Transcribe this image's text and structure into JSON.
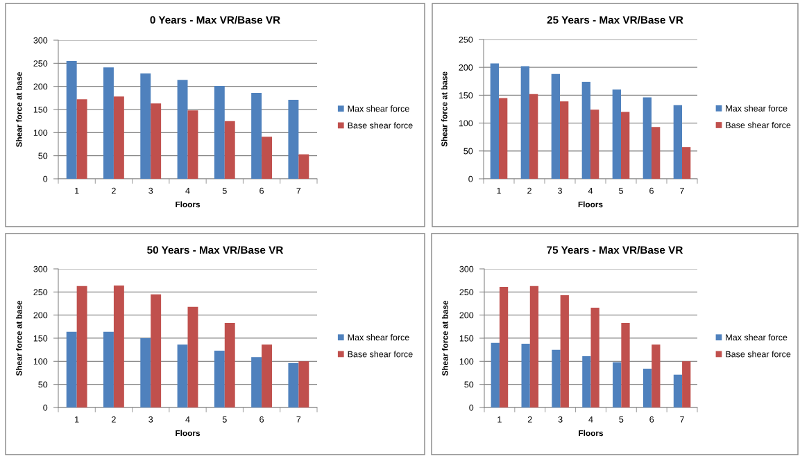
{
  "chart_data": [
    {
      "type": "bar",
      "title": "0 Years - Max VR/Base VR",
      "xlabel": "Floors",
      "ylabel": "Shear force at base",
      "categories": [
        "1",
        "2",
        "3",
        "4",
        "5",
        "6",
        "7"
      ],
      "series": [
        {
          "name": "Max shear force",
          "color": "#4f81bd",
          "values": [
            255,
            241,
            228,
            214,
            201,
            186,
            171
          ]
        },
        {
          "name": "Base shear force",
          "color": "#c0504d",
          "values": [
            172,
            178,
            163,
            148,
            125,
            91,
            53
          ]
        }
      ],
      "ylim": [
        0,
        300
      ],
      "yticks": [
        0,
        50,
        100,
        150,
        200,
        250,
        300
      ],
      "grid": "y",
      "legend": "right"
    },
    {
      "type": "bar",
      "title": "25 Years - Max VR/Base VR",
      "xlabel": "Floors",
      "ylabel": "Shear force at base",
      "categories": [
        "1",
        "2",
        "3",
        "4",
        "5",
        "6",
        "7"
      ],
      "series": [
        {
          "name": "Max shear force",
          "color": "#4f81bd",
          "values": [
            207,
            202,
            188,
            174,
            160,
            146,
            132
          ]
        },
        {
          "name": "Base shear force",
          "color": "#c0504d",
          "values": [
            145,
            152,
            139,
            124,
            120,
            93,
            57
          ]
        }
      ],
      "ylim": [
        0,
        250
      ],
      "yticks": [
        0,
        50,
        100,
        150,
        200,
        250
      ],
      "grid": "y",
      "legend": "right"
    },
    {
      "type": "bar",
      "title": "50 Years - Max VR/Base VR",
      "xlabel": "Floors",
      "ylabel": "Shear force at base",
      "categories": [
        "1",
        "2",
        "3",
        "4",
        "5",
        "6",
        "7"
      ],
      "series": [
        {
          "name": "Max shear force",
          "color": "#4f81bd",
          "values": [
            164,
            164,
            150,
            136,
            123,
            109,
            96
          ]
        },
        {
          "name": "Base shear force",
          "color": "#c0504d",
          "values": [
            263,
            264,
            245,
            218,
            183,
            136,
            100
          ]
        }
      ],
      "ylim": [
        0,
        300
      ],
      "yticks": [
        0,
        50,
        100,
        150,
        200,
        250,
        300
      ],
      "grid": "y",
      "legend": "right"
    },
    {
      "type": "bar",
      "title": "75 Years - Max VR/Base VR",
      "xlabel": "Floors",
      "ylabel": "Shear force at base",
      "categories": [
        "1",
        "2",
        "3",
        "4",
        "5",
        "6",
        "7"
      ],
      "series": [
        {
          "name": "Max shear force",
          "color": "#4f81bd",
          "values": [
            140,
            138,
            125,
            111,
            98,
            84,
            71
          ]
        },
        {
          "name": "Base shear force",
          "color": "#c0504d",
          "values": [
            261,
            263,
            243,
            216,
            183,
            136,
            100
          ]
        }
      ],
      "ylim": [
        0,
        300
      ],
      "yticks": [
        0,
        50,
        100,
        150,
        200,
        250,
        300
      ],
      "grid": "y",
      "legend": "right"
    }
  ]
}
